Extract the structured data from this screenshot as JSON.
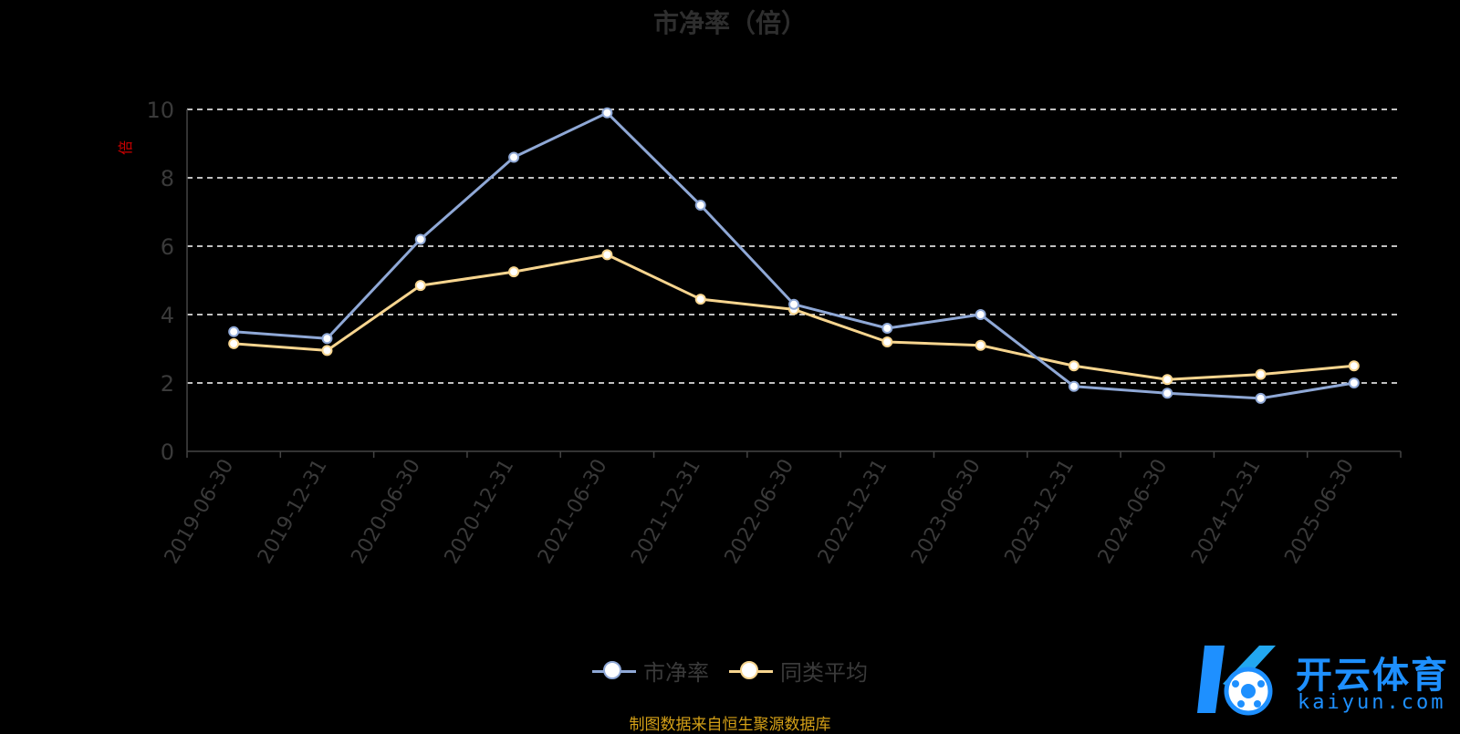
{
  "title": "市净率（倍）",
  "source_note": "制图数据来自恒生聚源数据库",
  "watermark": {
    "brand": "开云体育",
    "url": "kaiyun.com"
  },
  "colors": {
    "series_pb": "#8fa8d6",
    "series_avg": "#f7d58f",
    "grid": "#ffffff",
    "axis": "#444444",
    "tick_text": "#3a3a3a",
    "ylabel": "#cc0000",
    "source": "#d4a017"
  },
  "chart_data": {
    "type": "line",
    "title": "市净率（倍）",
    "ylabel": "倍",
    "ylim": [
      0,
      10
    ],
    "yticks": [
      0,
      2,
      4,
      6,
      8,
      10
    ],
    "grid": true,
    "legend_position": "bottom",
    "categories": [
      "2019-06-30",
      "2019-12-31",
      "2020-06-30",
      "2020-12-31",
      "2021-06-30",
      "2021-12-31",
      "2022-06-30",
      "2022-12-31",
      "2023-06-30",
      "2023-12-31",
      "2024-06-30",
      "2024-12-31",
      "2025-06-30"
    ],
    "series": [
      {
        "name": "市净率",
        "values": [
          3.5,
          3.3,
          6.2,
          8.6,
          9.9,
          7.2,
          4.3,
          3.6,
          4.0,
          1.9,
          1.7,
          1.55,
          2.0
        ]
      },
      {
        "name": "同类平均",
        "values": [
          3.15,
          2.95,
          4.85,
          5.25,
          5.75,
          4.45,
          4.15,
          3.2,
          3.1,
          2.5,
          2.1,
          2.25,
          2.5
        ]
      }
    ]
  }
}
